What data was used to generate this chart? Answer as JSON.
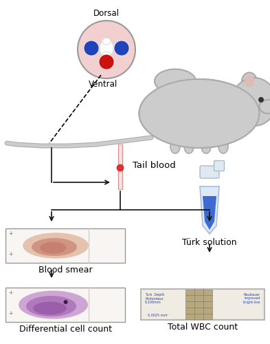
{
  "bg_color": "#ffffff",
  "dorsal_label": "Dorsal",
  "ventral_label": "Ventral",
  "tail_blood_label": "Tail blood",
  "blood_smear_label": "Blood smear",
  "turk_label": "Türk solution",
  "diff_label": "Differential cell count",
  "total_label": "Total WBC count",
  "circle_bg": "#f2d0d0",
  "circle_border": "#999999",
  "blue_vein_color": "#2244bb",
  "red_artery_color": "#cc1111",
  "mouse_body_color": "#cccccc",
  "mouse_border_color": "#aaaaaa",
  "capillary_body_color": "#f0c8c8",
  "capillary_blood_color": "#dd4444",
  "turk_tube_color": "#2255cc",
  "slide_border": "#999999",
  "slide_bg": "#f5f0ec",
  "smear_color1": "#d4906060",
  "smear_color2": "#c05850",
  "diff_smear_color": "#9955aa",
  "arrow_color": "#111111",
  "label_fontsize": 9
}
